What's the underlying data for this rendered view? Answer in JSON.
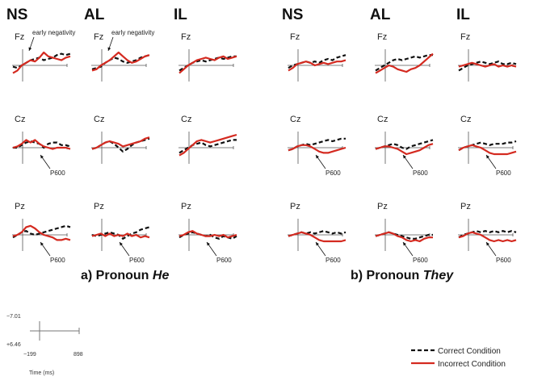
{
  "panels": [
    {
      "caption_prefix": "a) Pronoun ",
      "caption_pronoun": "He",
      "groups": [
        "NS",
        "AL",
        "IL"
      ]
    },
    {
      "caption_prefix": "b) Pronoun ",
      "caption_pronoun": "They",
      "groups": [
        "NS",
        "AL",
        "IL"
      ]
    }
  ],
  "electrodes": [
    "Fz",
    "Cz",
    "Pz"
  ],
  "annotations": {
    "early": "early negativity",
    "p600": "P600"
  },
  "scale": {
    "y_top": "−7.01",
    "y_bottom": "+6.46",
    "x_left": "−199",
    "x_right": "898",
    "x_title": "Time (ms)"
  },
  "legend": [
    {
      "label": "Correct Condition",
      "style": "dashed",
      "color": "#111111"
    },
    {
      "label": "Incorrect Condition",
      "style": "solid",
      "color": "#d42a20"
    }
  ],
  "chart_data": {
    "type": "line",
    "x_range_ms": [
      -199,
      898
    ],
    "y_range_uv": [
      -7.01,
      6.46
    ],
    "y_axis_inverted": true,
    "series_names": [
      "Correct Condition",
      "Incorrect Condition"
    ],
    "p600_marked": {
      "He": {
        "NS": [
          "Cz",
          "Pz"
        ],
        "AL": [
          "Pz"
        ],
        "IL": [
          "Pz"
        ]
      },
      "They": {
        "NS": [
          "Cz",
          "Pz"
        ],
        "AL": [
          "Cz",
          "Pz"
        ],
        "IL": [
          "Cz",
          "Pz"
        ]
      }
    },
    "early_negativity_marked": {
      "He": {
        "NS": [
          "Fz"
        ],
        "AL": [
          "Fz"
        ]
      }
    },
    "waveforms": {
      "He": {
        "NS": {
          "Fz": {
            "correct": [
              0.5,
              1,
              0,
              -1,
              -2,
              -2.5,
              -3,
              -2,
              -2.5,
              -3,
              -4,
              -4.5,
              -4,
              -4.5
            ],
            "incorrect": [
              3,
              2,
              0,
              -1,
              -2,
              -1.5,
              -3,
              -5,
              -3.5,
              -3,
              -2.5,
              -2,
              -3,
              -3.5
            ]
          },
          "Cz": {
            "correct": [
              0,
              0,
              -1,
              -2,
              -2.5,
              -2,
              -1.5,
              0,
              -1.5,
              -2,
              -2,
              -1,
              -1,
              -0.5
            ],
            "incorrect": [
              0,
              -0.5,
              -1.5,
              -3,
              -2,
              -3,
              -1.5,
              -0.5,
              0,
              0.5,
              0,
              0,
              0,
              0.5
            ]
          },
          "Pz": {
            "correct": [
              1,
              0,
              -1,
              -1.5,
              -0.5,
              0,
              -0.5,
              -1,
              -1.5,
              -2,
              -2.5,
              -3,
              -3.5,
              -3
            ],
            "incorrect": [
              0.5,
              0,
              -1,
              -3,
              -3.5,
              -2.5,
              -1,
              0,
              0.5,
              1,
              2,
              2,
              1.5,
              2
            ]
          }
        },
        "AL": {
          "Fz": {
            "correct": [
              1.5,
              1,
              0.5,
              -1,
              -2,
              -3,
              -2.5,
              -1.5,
              -1,
              -1.5,
              -2,
              -3,
              -3.5,
              -4
            ],
            "incorrect": [
              2,
              1.5,
              0,
              -1,
              -2,
              -3.5,
              -5,
              -3.5,
              -2,
              -1,
              -1.5,
              -2.5,
              -3.5,
              -4
            ]
          },
          "Cz": {
            "correct": [
              0.5,
              0,
              -1,
              -2,
              -2.5,
              -1.5,
              0,
              1.5,
              0.5,
              -1,
              -2,
              -2.5,
              -3,
              -3.5
            ],
            "incorrect": [
              0.5,
              0,
              -1,
              -2,
              -2.5,
              -2,
              -1.5,
              -0.5,
              -1,
              -1.5,
              -2,
              -2.5,
              -3.5,
              -4
            ]
          },
          "Pz": {
            "correct": [
              0,
              0.5,
              0,
              -0.5,
              -1,
              -0.5,
              0,
              1.5,
              0.5,
              -0.5,
              -1,
              -2,
              -2.5,
              -3
            ],
            "incorrect": [
              0.5,
              0,
              -0.5,
              0.5,
              -0.5,
              0.5,
              0,
              0.5,
              -0.5,
              0.5,
              0,
              1,
              0.5,
              1
            ]
          }
        },
        "IL": {
          "Fz": {
            "correct": [
              2,
              1,
              0,
              -1,
              -1.5,
              -2,
              -1.5,
              -2,
              -2.5,
              -3,
              -2.5,
              -3,
              -3.5,
              -3.5
            ],
            "incorrect": [
              3,
              1.5,
              0,
              -1,
              -2,
              -2.5,
              -3,
              -2.5,
              -2,
              -3,
              -3.5,
              -2.5,
              -3,
              -3.5
            ]
          },
          "Cz": {
            "correct": [
              2,
              1,
              0,
              -1,
              -1.5,
              -2,
              -1,
              -0.5,
              -1,
              -1.5,
              -2,
              -2.5,
              -3,
              -3
            ],
            "incorrect": [
              3,
              2,
              0.5,
              -1,
              -2.5,
              -3,
              -2.5,
              -2,
              -2.5,
              -3,
              -3.5,
              -4,
              -4.5,
              -5
            ]
          },
          "Pz": {
            "correct": [
              1,
              0,
              -0.5,
              -1,
              -0.5,
              0,
              0.5,
              0,
              1,
              1.5,
              0.5,
              1,
              1.5,
              0.5
            ],
            "incorrect": [
              0.5,
              0,
              -1,
              -1.5,
              -0.5,
              0,
              0.5,
              0.5,
              0,
              0.5,
              0,
              1,
              0.5,
              0
            ]
          }
        }
      },
      "They": {
        "NS": {
          "Fz": {
            "correct": [
              1,
              0,
              -0.5,
              -1,
              -1.5,
              -1,
              -1.5,
              -1,
              -2,
              -2.5,
              -2,
              -3,
              -3.5,
              -4
            ],
            "incorrect": [
              2,
              1,
              -0.5,
              -1,
              -1.5,
              -1,
              0,
              -0.5,
              -1,
              -0.5,
              -1,
              -1.5,
              -1.5,
              -2
            ]
          },
          "Cz": {
            "correct": [
              1,
              0.5,
              -0.5,
              -1,
              -1.5,
              -1,
              -1.5,
              -2,
              -2.5,
              -3,
              -2.5,
              -3,
              -3.5,
              -3.5
            ],
            "incorrect": [
              1,
              0.5,
              -0.5,
              -1,
              -1,
              -0.5,
              0.5,
              1.5,
              2,
              2,
              1.5,
              1,
              0.5,
              0
            ]
          },
          "Pz": {
            "correct": [
              0.5,
              0,
              -0.5,
              -1,
              -0.5,
              -1,
              -0.5,
              -1,
              -1.5,
              -1,
              -0.5,
              -1,
              -0.5,
              -1
            ],
            "incorrect": [
              0.5,
              0,
              -0.5,
              -1,
              -0.5,
              0,
              1,
              2,
              2.5,
              2.5,
              2.5,
              2.5,
              2.5,
              2
            ]
          }
        },
        "AL": {
          "Fz": {
            "correct": [
              2,
              1,
              0,
              -1,
              -2,
              -2.5,
              -2,
              -2.5,
              -3,
              -3.5,
              -3,
              -3.5,
              -4,
              -4
            ],
            "incorrect": [
              3,
              2,
              1,
              0,
              0.5,
              1.5,
              2,
              2.5,
              1.5,
              1,
              0,
              -1.5,
              -3,
              -4.5
            ]
          },
          "Cz": {
            "correct": [
              0.5,
              0,
              -0.5,
              -1,
              -1.5,
              -1,
              0,
              0.5,
              -0.5,
              -1,
              -1.5,
              -2,
              -2.5,
              -3
            ],
            "incorrect": [
              0.5,
              0,
              -0.5,
              -0.5,
              0,
              0.5,
              1.5,
              2.5,
              2,
              1.5,
              1,
              0,
              -1,
              -1.5
            ]
          },
          "Pz": {
            "correct": [
              0.5,
              0,
              -0.5,
              -1,
              -0.5,
              0,
              0.5,
              1,
              1.5,
              1.5,
              1,
              0.5,
              0,
              0
            ],
            "incorrect": [
              0.5,
              0,
              -0.5,
              -1,
              -0.5,
              0.5,
              1,
              2,
              2.5,
              2,
              2.5,
              1.5,
              1,
              1
            ]
          }
        },
        "IL": {
          "Fz": {
            "correct": [
              2,
              1,
              0,
              -0.5,
              -1,
              -1.5,
              -1,
              -0.5,
              -1,
              -1.5,
              -0.5,
              -0.5,
              -1,
              -0.5
            ],
            "incorrect": [
              0.5,
              0,
              -0.5,
              -1,
              -0.5,
              0,
              0.5,
              0,
              -0.5,
              0.5,
              0,
              0.5,
              0,
              0.5
            ]
          },
          "Cz": {
            "correct": [
              1,
              0,
              -0.5,
              -1,
              -1.5,
              -2,
              -1.5,
              -1,
              -1.5,
              -1.5,
              -1.5,
              -2,
              -2,
              -2.5
            ],
            "incorrect": [
              1,
              0,
              -0.5,
              -1,
              -0.5,
              0,
              1,
              2,
              2.5,
              2.5,
              2.5,
              2.5,
              2,
              1.5
            ]
          },
          "Pz": {
            "correct": [
              1,
              0,
              -0.5,
              -1,
              -1.5,
              -1,
              -1.5,
              -1,
              -1.5,
              -1,
              -1.5,
              -1,
              -1.5,
              -1
            ],
            "incorrect": [
              1,
              0.5,
              -0.5,
              -1,
              -0.5,
              0,
              1,
              2,
              2.5,
              2,
              2.5,
              2,
              2.5,
              2
            ]
          }
        }
      }
    }
  }
}
